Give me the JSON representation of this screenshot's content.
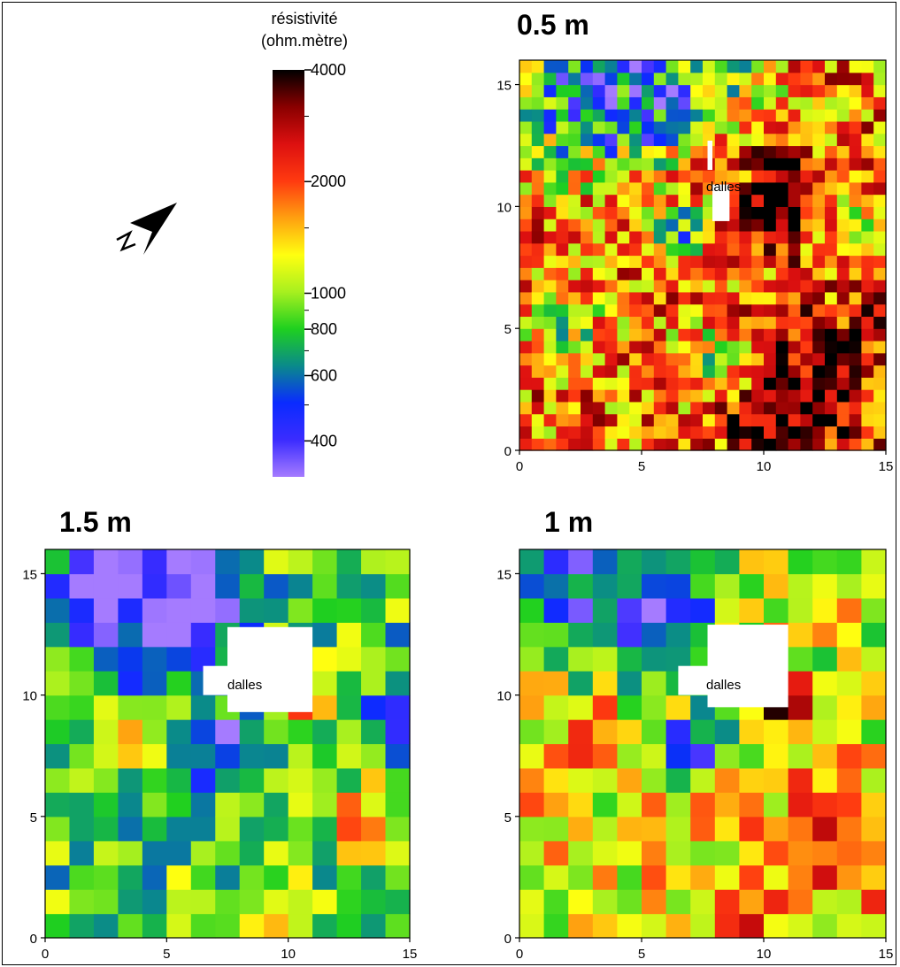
{
  "colorbar": {
    "title_line1": "résistivité",
    "title_line2": "(ohm.mètre)",
    "ticks": [
      {
        "value": 4000,
        "label": "4000"
      },
      {
        "value": 2000,
        "label": "2000"
      },
      {
        "value": 1000,
        "label": "1000"
      },
      {
        "value": 800,
        "label": "800"
      },
      {
        "value": 600,
        "label": "600"
      },
      {
        "value": 400,
        "label": "400"
      }
    ],
    "min": 320,
    "max": 4000,
    "scale": "log",
    "colors": [
      "#a57bff",
      "#3b2cff",
      "#0a2bff",
      "#0a8a8a",
      "#1fd01f",
      "#a8f01f",
      "#ffff10",
      "#ffa010",
      "#ff3a10",
      "#dd1010",
      "#8a0000",
      "#000000"
    ]
  },
  "north_arrow": {
    "label": "N"
  },
  "panels": {
    "p05": {
      "title": "0.5 m",
      "annotation": "dalles"
    },
    "p15": {
      "title": "1.5 m",
      "annotation": "dalles"
    },
    "p10": {
      "title": "1 m",
      "annotation": "dalles"
    }
  },
  "chart_data": [
    {
      "type": "heatmap",
      "title": "0.5 m",
      "xlim": [
        0,
        15
      ],
      "ylim": [
        0,
        16
      ],
      "xticks": [
        0,
        5,
        10,
        15
      ],
      "yticks": [
        0,
        5,
        10,
        15
      ],
      "cell_size_m": 0.5,
      "value_unit": "ohm.mètre",
      "anomalies": [
        {
          "region": "x 0-7, y 13-16",
          "resistivity": 600
        },
        {
          "region": "x 0-4, y 4-7",
          "resistivity": 1000
        },
        {
          "region": "x 9.5-11.5, y 8-12",
          "resistivity": 4000
        },
        {
          "region": "x 10-15, y 0-7",
          "resistivity": 2800
        },
        {
          "region": "background",
          "resistivity": 2000
        }
      ],
      "mask_label": "dalles"
    },
    {
      "type": "heatmap",
      "title": "1.5 m",
      "xlim": [
        0,
        15
      ],
      "ylim": [
        0,
        16
      ],
      "xticks": [
        0,
        5,
        10,
        15
      ],
      "yticks": [
        0,
        5,
        10,
        15
      ],
      "cell_size_m": 1,
      "value_unit": "ohm.mètre",
      "anomalies": [
        {
          "region": "x 0-8, y 12-16",
          "resistivity": 400
        },
        {
          "region": "x 10-11, y 9-11",
          "resistivity": 4000
        },
        {
          "region": "x 12-15, y 4-6",
          "resistivity": 2000
        },
        {
          "region": "background",
          "resistivity": 900
        }
      ],
      "mask_label": "dalles"
    },
    {
      "type": "heatmap",
      "title": "1 m",
      "xlim": [
        0,
        15
      ],
      "ylim": [
        0,
        16
      ],
      "xticks": [
        0,
        5,
        10,
        15
      ],
      "yticks": [
        0,
        5,
        10,
        15
      ],
      "cell_size_m": 1,
      "value_unit": "ohm.mètre",
      "anomalies": [
        {
          "region": "x 0-8, y 12-16",
          "resistivity": 450
        },
        {
          "region": "x 9.5-11.5, y 9-11",
          "resistivity": 4000
        },
        {
          "region": "x 11-15, y 2-7",
          "resistivity": 2600
        },
        {
          "region": "background",
          "resistivity": 1300
        }
      ],
      "mask_label": "dalles"
    }
  ]
}
